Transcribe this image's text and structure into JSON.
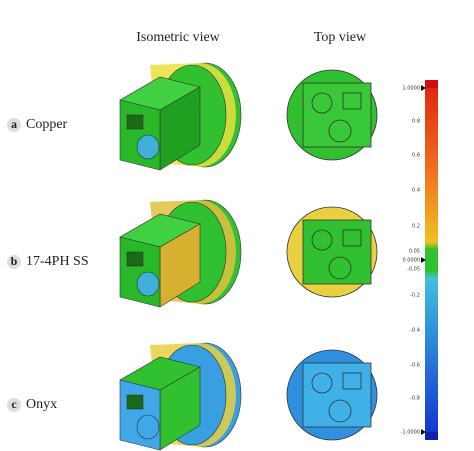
{
  "headers": [
    "Isometric view",
    "Top view"
  ],
  "rows": [
    {
      "letter": "a",
      "label": "Copper"
    },
    {
      "letter": "b",
      "label": "17-4PH SS"
    },
    {
      "letter": "c",
      "label": "Onyx"
    }
  ],
  "colorbar": [
    "1.0000",
    "0.8",
    "0.6",
    "0.4",
    "0.2",
    "0.05",
    "0.0000",
    "-0.05",
    "-0.2",
    "-0.4",
    "-0.6",
    "-0.8",
    "-1.0000"
  ]
}
